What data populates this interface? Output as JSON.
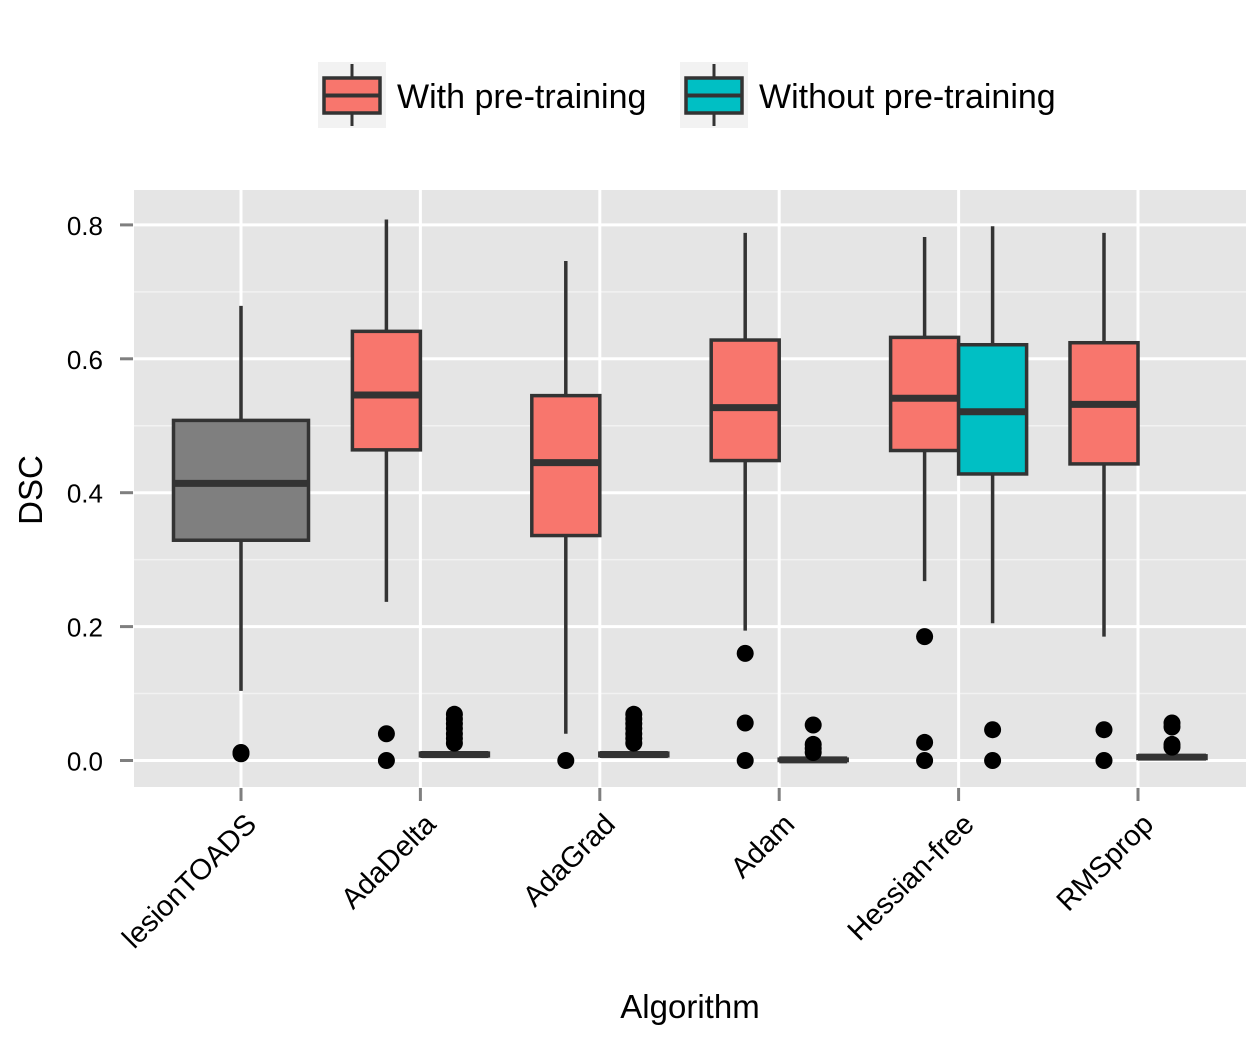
{
  "chart_data": {
    "type": "boxplot",
    "xlabel": "Algorithm",
    "ylabel": "DSC",
    "ylim": [
      -0.04,
      0.85
    ],
    "yticks": [
      "0.0",
      "0.2",
      "0.4",
      "0.6",
      "0.8"
    ],
    "ytick_values": [
      0.0,
      0.2,
      0.4,
      0.6,
      0.8
    ],
    "categories": [
      "lesionTOADS",
      "AdaDelta",
      "AdaGrad",
      "Adam",
      "Hessian-free",
      "RMSprop"
    ],
    "grid": true,
    "legend_position": "top",
    "legend": [
      {
        "label": "With pre-training",
        "color": "#F8766D"
      },
      {
        "label": "Without pre-training",
        "color": "#00BFC4"
      }
    ],
    "baseline_color": "#7F7F7F",
    "boxes": [
      {
        "category": "lesionTOADS",
        "group": "baseline",
        "lower_whisker": 0.104,
        "q1": 0.329,
        "median": 0.414,
        "q3": 0.508,
        "upper_whisker": 0.679,
        "outliers": [
          0.012,
          0.01
        ]
      },
      {
        "category": "AdaDelta",
        "group": "With pre-training",
        "lower_whisker": 0.237,
        "q1": 0.464,
        "median": 0.546,
        "q3": 0.641,
        "upper_whisker": 0.808,
        "outliers": [
          0.04,
          0.0
        ]
      },
      {
        "category": "AdaDelta",
        "group": "Without pre-training",
        "lower_whisker": 0.005,
        "q1": 0.007,
        "median": 0.009,
        "q3": 0.011,
        "upper_whisker": 0.013,
        "outliers": [
          0.069,
          0.062,
          0.055,
          0.048,
          0.04,
          0.033,
          0.026
        ]
      },
      {
        "category": "AdaGrad",
        "group": "With pre-training",
        "lower_whisker": 0.04,
        "q1": 0.336,
        "median": 0.445,
        "q3": 0.545,
        "upper_whisker": 0.746,
        "outliers": [
          0.0
        ]
      },
      {
        "category": "AdaGrad",
        "group": "Without pre-training",
        "lower_whisker": 0.005,
        "q1": 0.007,
        "median": 0.009,
        "q3": 0.011,
        "upper_whisker": 0.013,
        "outliers": [
          0.069,
          0.062,
          0.055,
          0.048,
          0.04,
          0.033,
          0.026
        ]
      },
      {
        "category": "Adam",
        "group": "With pre-training",
        "lower_whisker": 0.194,
        "q1": 0.448,
        "median": 0.527,
        "q3": 0.628,
        "upper_whisker": 0.788,
        "outliers": [
          0.16,
          0.056,
          0.0
        ]
      },
      {
        "category": "Adam",
        "group": "Without pre-training",
        "lower_whisker": 0.0,
        "q1": 0.0,
        "median": 0.001,
        "q3": 0.002,
        "upper_whisker": 0.004,
        "outliers": [
          0.053,
          0.024,
          0.018,
          0.012
        ]
      },
      {
        "category": "Hessian-free",
        "group": "With pre-training",
        "lower_whisker": 0.268,
        "q1": 0.463,
        "median": 0.541,
        "q3": 0.632,
        "upper_whisker": 0.782,
        "outliers": [
          0.185,
          0.027,
          0.0
        ]
      },
      {
        "category": "Hessian-free",
        "group": "Without pre-training",
        "lower_whisker": 0.205,
        "q1": 0.428,
        "median": 0.521,
        "q3": 0.621,
        "upper_whisker": 0.798,
        "outliers": [
          0.046,
          0.0
        ]
      },
      {
        "category": "RMSprop",
        "group": "With pre-training",
        "lower_whisker": 0.185,
        "q1": 0.443,
        "median": 0.532,
        "q3": 0.624,
        "upper_whisker": 0.788,
        "outliers": [
          0.046,
          0.0
        ]
      },
      {
        "category": "RMSprop",
        "group": "Without pre-training",
        "lower_whisker": 0.001,
        "q1": 0.003,
        "median": 0.005,
        "q3": 0.007,
        "upper_whisker": 0.009,
        "outliers": [
          0.056,
          0.05,
          0.024,
          0.02
        ]
      }
    ]
  }
}
